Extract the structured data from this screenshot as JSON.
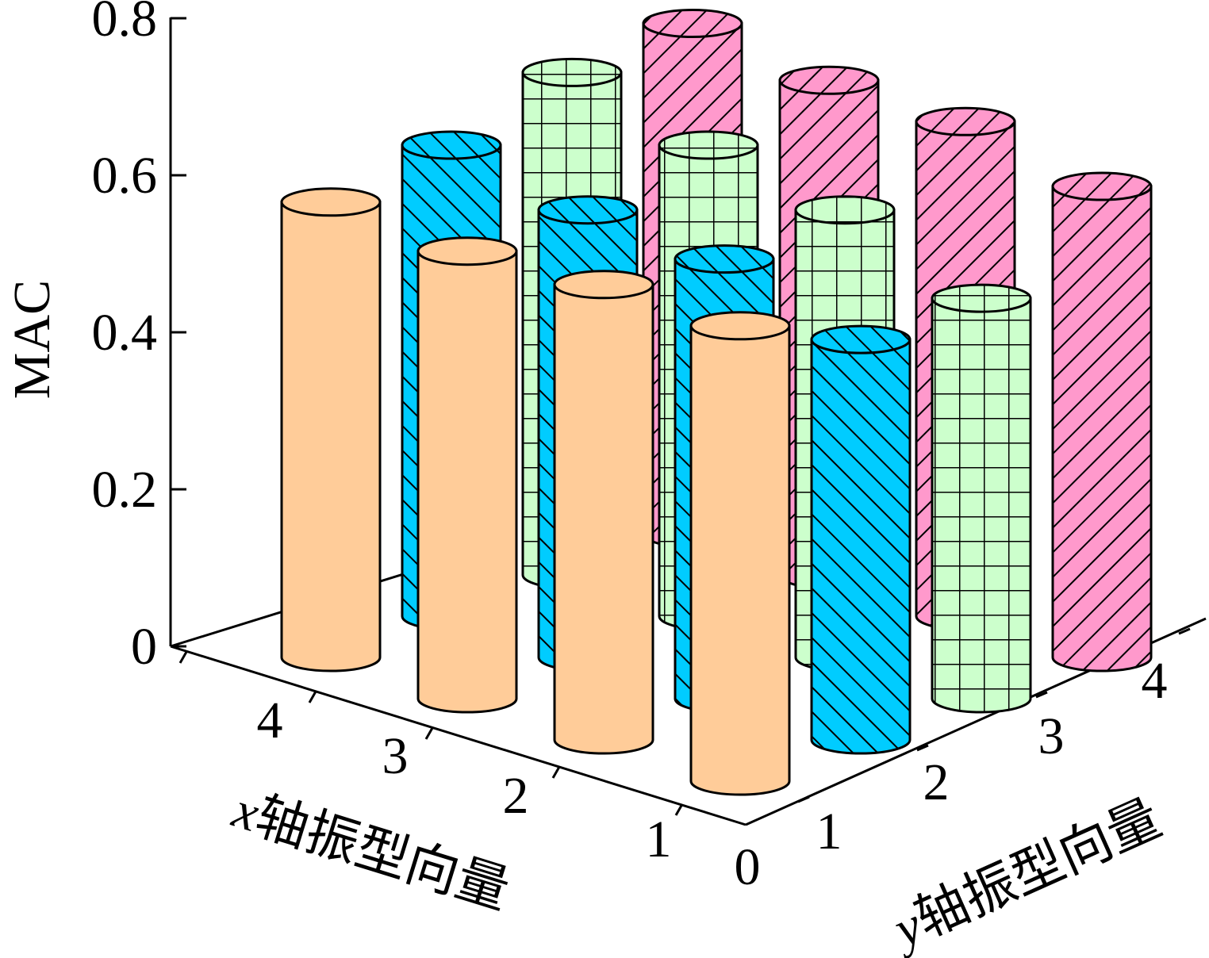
{
  "chart_data": {
    "type": "bar",
    "title": "",
    "zlabel": "MAC",
    "xlabel_var": "x",
    "xlabel_rest": "轴振型向量",
    "ylabel_var": "y",
    "ylabel_rest": "轴振型向量",
    "zlim": [
      0,
      0.8
    ],
    "z_ticks": [
      "0",
      "0.2",
      "0.4",
      "0.6",
      "0.8"
    ],
    "x_categories": [
      "1",
      "2",
      "3",
      "4"
    ],
    "y_categories": [
      "1",
      "2",
      "3",
      "4"
    ],
    "origin_label": "0",
    "x_tick_labels": [
      "1",
      "2",
      "3",
      "4"
    ],
    "y_tick_labels": [
      "1",
      "2",
      "3",
      "4"
    ],
    "series": [
      {
        "y": "1",
        "values": [
          0.58,
          0.58,
          0.57,
          0.58
        ],
        "color": "#FFCC99",
        "pattern": "solid"
      },
      {
        "y": "2",
        "values": [
          0.51,
          0.56,
          0.57,
          0.6
        ],
        "color": "#00CCFF",
        "pattern": "diagonal-right"
      },
      {
        "y": "3",
        "values": [
          0.51,
          0.57,
          0.6,
          0.64
        ],
        "color": "#CCFFCC",
        "pattern": "grid"
      },
      {
        "y": "4",
        "values": [
          0.6,
          0.63,
          0.63,
          0.65
        ],
        "color": "#FF99CC",
        "pattern": "diagonal-left"
      }
    ]
  }
}
